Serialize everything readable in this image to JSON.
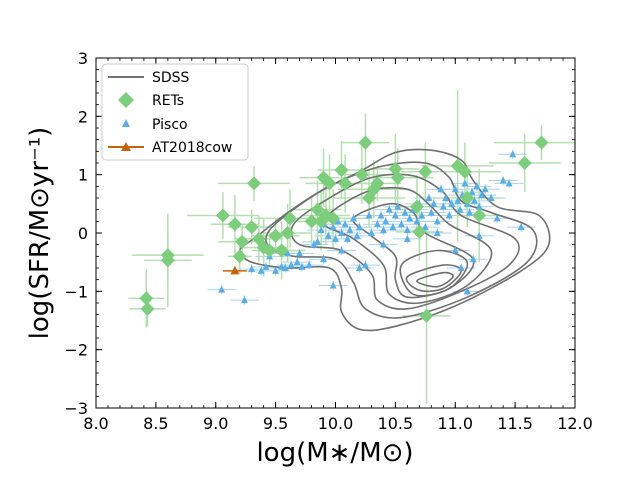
{
  "chart_data": {
    "type": "scatter",
    "xlabel": "log(M∗/M⊙)",
    "ylabel": "log(SFR/M⊙yr⁻¹)",
    "xlim": [
      8.0,
      12.0
    ],
    "ylim": [
      -3,
      3
    ],
    "x_ticks": [
      "8.0",
      "8.5",
      "9.0",
      "9.5",
      "10.0",
      "10.5",
      "11.0",
      "11.5",
      "12.0"
    ],
    "y_ticks": [
      "−3",
      "−2",
      "−1",
      "0",
      "1",
      "2",
      "3"
    ],
    "legend_position": "top-left",
    "colors": {
      "sdss": "#707070",
      "rets": "#7ccd7c",
      "rets_err": "#b4e0b0",
      "pisco": "#5aaee6",
      "pisco_err": "#a8d2f0",
      "at2018cow": "#c8620a"
    },
    "legend": [
      {
        "label": "SDSS",
        "marker": "line"
      },
      {
        "label": "RETs",
        "marker": "diamond"
      },
      {
        "label": "Pisco",
        "marker": "triangle"
      },
      {
        "label": "AT2018cow",
        "marker": "triangle-line"
      }
    ],
    "series": [
      {
        "name": "SDSS",
        "kind": "contour",
        "contours": [
          [
            [
              9.35,
              -0.05
            ],
            [
              9.6,
              0.35
            ],
            [
              9.9,
              0.75
            ],
            [
              10.2,
              1.05
            ],
            [
              10.5,
              1.38
            ],
            [
              10.8,
              1.42
            ],
            [
              11.05,
              1.25
            ],
            [
              11.15,
              0.9
            ],
            [
              11.35,
              0.45
            ],
            [
              11.7,
              0.3
            ],
            [
              11.78,
              -0.2
            ],
            [
              11.55,
              -0.65
            ],
            [
              11.0,
              -1.25
            ],
            [
              10.5,
              -1.6
            ],
            [
              10.2,
              -1.65
            ],
            [
              10.05,
              -1.35
            ],
            [
              10.05,
              -0.95
            ],
            [
              9.95,
              -0.6
            ],
            [
              9.6,
              -0.6
            ],
            [
              9.3,
              -0.5
            ],
            [
              9.2,
              -0.3
            ]
          ],
          [
            [
              9.45,
              0.05
            ],
            [
              9.75,
              0.55
            ],
            [
              10.05,
              0.9
            ],
            [
              10.4,
              1.15
            ],
            [
              10.75,
              1.2
            ],
            [
              10.95,
              0.95
            ],
            [
              11.05,
              0.55
            ],
            [
              11.3,
              0.35
            ],
            [
              11.65,
              0.05
            ],
            [
              11.6,
              -0.5
            ],
            [
              11.1,
              -1.1
            ],
            [
              10.55,
              -1.45
            ],
            [
              10.25,
              -1.3
            ],
            [
              10.15,
              -0.85
            ],
            [
              10.0,
              -0.45
            ],
            [
              9.65,
              -0.4
            ],
            [
              9.45,
              -0.25
            ]
          ],
          [
            [
              9.65,
              0.15
            ],
            [
              9.95,
              0.6
            ],
            [
              10.3,
              0.95
            ],
            [
              10.65,
              0.98
            ],
            [
              10.9,
              0.7
            ],
            [
              11.05,
              0.3
            ],
            [
              11.5,
              -0.1
            ],
            [
              11.45,
              -0.55
            ],
            [
              11.05,
              -1.0
            ],
            [
              10.6,
              -1.3
            ],
            [
              10.35,
              -1.15
            ],
            [
              10.3,
              -0.7
            ],
            [
              10.05,
              -0.3
            ],
            [
              9.7,
              -0.2
            ]
          ],
          [
            [
              9.9,
              0.2
            ],
            [
              10.25,
              0.7
            ],
            [
              10.6,
              0.75
            ],
            [
              10.8,
              0.45
            ],
            [
              10.95,
              0.15
            ],
            [
              11.3,
              -0.3
            ],
            [
              11.1,
              -0.9
            ],
            [
              10.7,
              -1.2
            ],
            [
              10.45,
              -1.05
            ],
            [
              10.4,
              -0.55
            ],
            [
              10.15,
              -0.1
            ]
          ],
          [
            [
              10.15,
              0.25
            ],
            [
              10.45,
              0.5
            ],
            [
              10.65,
              0.35
            ],
            [
              10.75,
              0.0
            ],
            [
              11.15,
              -0.45
            ],
            [
              10.95,
              -0.95
            ],
            [
              10.6,
              -1.1
            ],
            [
              10.5,
              -0.8
            ],
            [
              10.5,
              -0.4
            ],
            [
              10.3,
              -0.05
            ]
          ],
          [
            [
              10.55,
              -0.55
            ],
            [
              10.85,
              -0.3
            ],
            [
              11.1,
              -0.5
            ],
            [
              10.95,
              -0.95
            ],
            [
              10.65,
              -1.05
            ]
          ],
          [
            [
              10.6,
              -0.75
            ],
            [
              10.9,
              -0.55
            ],
            [
              11.05,
              -0.65
            ],
            [
              10.9,
              -0.95
            ],
            [
              10.7,
              -0.98
            ]
          ],
          [
            [
              10.68,
              -0.82
            ],
            [
              10.9,
              -0.68
            ],
            [
              10.98,
              -0.75
            ],
            [
              10.85,
              -0.92
            ]
          ]
        ]
      },
      {
        "name": "RETs",
        "kind": "points",
        "points": [
          {
            "x": 8.42,
            "y": -1.12,
            "xerr": 0.15,
            "yerr": 0.5
          },
          {
            "x": 8.43,
            "y": -1.3,
            "xerr": 0.15,
            "yerr": 0.3
          },
          {
            "x": 8.6,
            "y": -0.38,
            "xerr": 0.3,
            "yerr": 0.5
          },
          {
            "x": 8.6,
            "y": -0.47,
            "xerr": 0.2,
            "yerr": 0.8
          },
          {
            "x": 9.06,
            "y": 0.3,
            "xerr": 0.3,
            "yerr": 0.4
          },
          {
            "x": 9.16,
            "y": 0.15,
            "xerr": 0.2,
            "yerr": 0.5
          },
          {
            "x": 9.2,
            "y": -0.4,
            "xerr": 0.1,
            "yerr": 0.3
          },
          {
            "x": 9.22,
            "y": -0.15,
            "xerr": 0.2,
            "yerr": 0.3
          },
          {
            "x": 9.3,
            "y": 0.1,
            "xerr": 0.2,
            "yerr": 0.3
          },
          {
            "x": 9.32,
            "y": 0.85,
            "xerr": 0.3,
            "yerr": 0.3
          },
          {
            "x": 9.36,
            "y": -0.1,
            "xerr": 0.2,
            "yerr": 0.4
          },
          {
            "x": 9.4,
            "y": -0.25,
            "xerr": 0.2,
            "yerr": 0.5
          },
          {
            "x": 9.45,
            "y": -0.3,
            "xerr": 0.15,
            "yerr": 0.3
          },
          {
            "x": 9.5,
            "y": -0.05,
            "xerr": 0.2,
            "yerr": 0.3
          },
          {
            "x": 9.55,
            "y": -0.3,
            "xerr": 0.2,
            "yerr": 0.5
          },
          {
            "x": 9.6,
            "y": 0.0,
            "xerr": 0.2,
            "yerr": 0.5
          },
          {
            "x": 9.62,
            "y": 0.25,
            "xerr": 0.3,
            "yerr": 0.5
          },
          {
            "x": 9.8,
            "y": 0.2,
            "xerr": 0.2,
            "yerr": 0.4
          },
          {
            "x": 9.85,
            "y": 0.4,
            "xerr": 0.2,
            "yerr": 0.5
          },
          {
            "x": 9.88,
            "y": 0.2,
            "xerr": 0.2,
            "yerr": 0.5
          },
          {
            "x": 9.9,
            "y": 0.95,
            "xerr": 0.2,
            "yerr": 0.5
          },
          {
            "x": 9.92,
            "y": 0.3,
            "xerr": 0.2,
            "yerr": 0.5
          },
          {
            "x": 9.95,
            "y": 0.85,
            "xerr": 0.2,
            "yerr": 0.5
          },
          {
            "x": 9.98,
            "y": 0.25,
            "xerr": 0.3,
            "yerr": 0.5
          },
          {
            "x": 10.05,
            "y": 1.08,
            "xerr": 0.2,
            "yerr": 0.5
          },
          {
            "x": 10.08,
            "y": 0.85,
            "xerr": 0.2,
            "yerr": 0.5
          },
          {
            "x": 10.22,
            "y": 1.0,
            "xerr": 0.2,
            "yerr": 0.5
          },
          {
            "x": 10.25,
            "y": 1.55,
            "xerr": 0.2,
            "yerr": 0.5
          },
          {
            "x": 10.28,
            "y": 0.6,
            "xerr": 0.3,
            "yerr": 0.5
          },
          {
            "x": 10.32,
            "y": 0.75,
            "xerr": 0.3,
            "yerr": 0.5
          },
          {
            "x": 10.35,
            "y": 0.85,
            "xerr": 0.2,
            "yerr": 0.3
          },
          {
            "x": 10.5,
            "y": 1.1,
            "xerr": 0.2,
            "yerr": 0.6
          },
          {
            "x": 10.52,
            "y": 0.95,
            "xerr": 0.3,
            "yerr": 0.5
          },
          {
            "x": 10.68,
            "y": 0.45,
            "xerr": 0.2,
            "yerr": 0.5
          },
          {
            "x": 10.7,
            "y": 0.02,
            "xerr": 0.2,
            "yerr": 0.5
          },
          {
            "x": 10.75,
            "y": 1.05,
            "xerr": 0.2,
            "yerr": 0.5
          },
          {
            "x": 10.76,
            "y": -1.42,
            "xerr": 0.2,
            "yerr": 1.5
          },
          {
            "x": 11.02,
            "y": 1.15,
            "xerr": 0.3,
            "yerr": 1.3
          },
          {
            "x": 11.08,
            "y": 1.05,
            "xerr": 0.3,
            "yerr": 0.5
          },
          {
            "x": 11.1,
            "y": 0.6,
            "xerr": 0.3,
            "yerr": 0.5
          },
          {
            "x": 11.2,
            "y": 0.3,
            "xerr": 0.2,
            "yerr": 0.8
          },
          {
            "x": 11.58,
            "y": 1.2,
            "xerr": 0.3,
            "yerr": 0.5
          },
          {
            "x": 11.72,
            "y": 1.55,
            "xerr": 0.4,
            "yerr": 0.3
          }
        ]
      },
      {
        "name": "Pisco",
        "kind": "points",
        "points": [
          {
            "x": 9.05,
            "y": -0.97
          },
          {
            "x": 9.24,
            "y": -1.15
          },
          {
            "x": 9.3,
            "y": -0.62
          },
          {
            "x": 9.38,
            "y": -0.65
          },
          {
            "x": 9.42,
            "y": -0.58
          },
          {
            "x": 9.5,
            "y": -0.65
          },
          {
            "x": 9.55,
            "y": -0.58
          },
          {
            "x": 9.58,
            "y": -0.6
          },
          {
            "x": 9.6,
            "y": -0.35
          },
          {
            "x": 9.63,
            "y": -0.55
          },
          {
            "x": 9.68,
            "y": -0.5
          },
          {
            "x": 9.72,
            "y": -0.58
          },
          {
            "x": 9.78,
            "y": -0.55
          },
          {
            "x": 9.82,
            "y": -0.2
          },
          {
            "x": 9.85,
            "y": -0.15
          },
          {
            "x": 9.88,
            "y": 0.05
          },
          {
            "x": 9.9,
            "y": 0.15
          },
          {
            "x": 9.94,
            "y": -0.05
          },
          {
            "x": 9.98,
            "y": 0.1
          },
          {
            "x": 10.0,
            "y": -0.1
          },
          {
            "x": 9.98,
            "y": -0.9
          },
          {
            "x": 10.02,
            "y": 0.2
          },
          {
            "x": 10.05,
            "y": 0.0
          },
          {
            "x": 10.08,
            "y": 0.15
          },
          {
            "x": 10.1,
            "y": -0.1
          },
          {
            "x": 10.12,
            "y": 0.05
          },
          {
            "x": 10.15,
            "y": 0.25
          },
          {
            "x": 10.18,
            "y": -0.05
          },
          {
            "x": 10.2,
            "y": 0.1
          },
          {
            "x": 10.25,
            "y": -0.55
          },
          {
            "x": 10.28,
            "y": 0.3
          },
          {
            "x": 10.3,
            "y": 0.0
          },
          {
            "x": 10.35,
            "y": 0.15
          },
          {
            "x": 10.38,
            "y": 0.3
          },
          {
            "x": 10.4,
            "y": 0.05
          },
          {
            "x": 10.42,
            "y": 0.2
          },
          {
            "x": 10.45,
            "y": 0.4
          },
          {
            "x": 10.48,
            "y": 0.1
          },
          {
            "x": 10.5,
            "y": 0.3
          },
          {
            "x": 10.52,
            "y": 0.45
          },
          {
            "x": 10.55,
            "y": 0.15
          },
          {
            "x": 10.58,
            "y": 0.35
          },
          {
            "x": 10.6,
            "y": 0.05
          },
          {
            "x": 10.62,
            "y": 0.25
          },
          {
            "x": 10.65,
            "y": 0.4
          },
          {
            "x": 10.68,
            "y": 0.2
          },
          {
            "x": 10.7,
            "y": 0.5
          },
          {
            "x": 10.72,
            "y": 0.3
          },
          {
            "x": 10.75,
            "y": 0.1
          },
          {
            "x": 10.78,
            "y": 0.6
          },
          {
            "x": 10.8,
            "y": 0.35
          },
          {
            "x": 10.82,
            "y": 0.5
          },
          {
            "x": 10.85,
            "y": 0.2
          },
          {
            "x": 10.88,
            "y": 0.75
          },
          {
            "x": 10.9,
            "y": 0.45
          },
          {
            "x": 10.92,
            "y": 0.6
          },
          {
            "x": 10.95,
            "y": 0.3
          },
          {
            "x": 10.97,
            "y": 0.5
          },
          {
            "x": 11.0,
            "y": 0.75
          },
          {
            "x": 11.02,
            "y": 0.55
          },
          {
            "x": 11.04,
            "y": 0.4
          },
          {
            "x": 11.06,
            "y": 0.65
          },
          {
            "x": 11.08,
            "y": 0.85
          },
          {
            "x": 11.1,
            "y": 0.5
          },
          {
            "x": 11.12,
            "y": 0.35
          },
          {
            "x": 11.14,
            "y": 0.7
          },
          {
            "x": 11.16,
            "y": 0.55
          },
          {
            "x": 11.18,
            "y": 0.8
          },
          {
            "x": 11.2,
            "y": 0.45
          },
          {
            "x": 11.22,
            "y": 0.65
          },
          {
            "x": 11.25,
            "y": 0.75
          },
          {
            "x": 11.3,
            "y": 0.6
          },
          {
            "x": 11.35,
            "y": 0.25
          },
          {
            "x": 11.4,
            "y": 0.9
          },
          {
            "x": 11.45,
            "y": 0.85
          },
          {
            "x": 11.48,
            "y": 1.35
          },
          {
            "x": 11.55,
            "y": 0.1
          },
          {
            "x": 11.0,
            "y": -0.3
          },
          {
            "x": 11.05,
            "y": -0.6
          },
          {
            "x": 11.15,
            "y": -0.45
          },
          {
            "x": 11.1,
            "y": -1.0
          },
          {
            "x": 11.2,
            "y": -0.05
          },
          {
            "x": 10.2,
            "y": -0.6
          },
          {
            "x": 9.7,
            "y": -0.35
          },
          {
            "x": 9.9,
            "y": -0.45
          },
          {
            "x": 10.05,
            "y": -0.3
          },
          {
            "x": 10.4,
            "y": -0.2
          },
          {
            "x": 10.6,
            "y": -0.1
          },
          {
            "x": 10.85,
            "y": 0.0
          },
          {
            "x": 9.45,
            "y": -0.4
          }
        ]
      },
      {
        "name": "AT2018cow",
        "kind": "points",
        "points": [
          {
            "x": 9.16,
            "y": -0.65,
            "xerr": 0.1,
            "yerr": 0.05
          }
        ]
      }
    ]
  }
}
